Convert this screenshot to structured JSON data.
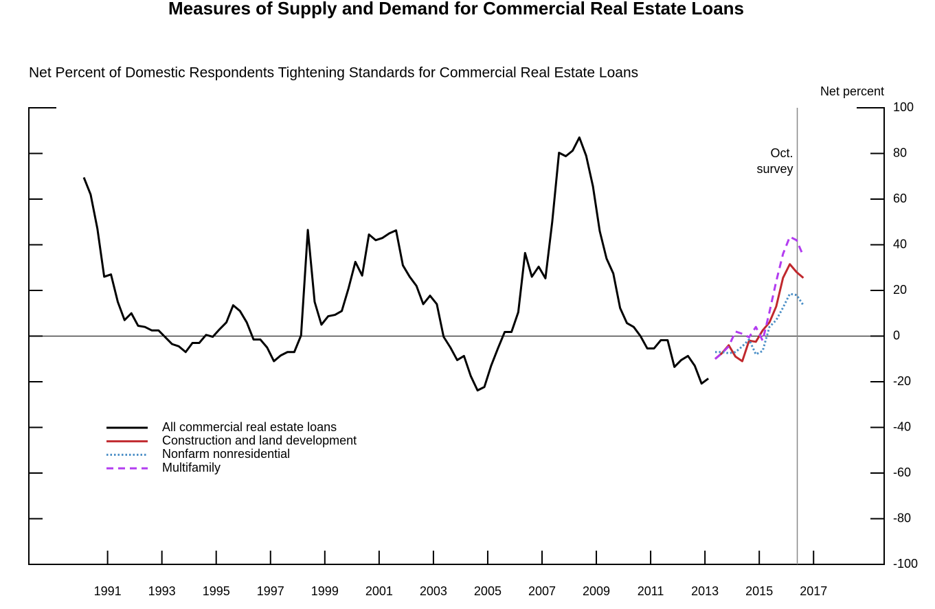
{
  "chart_data": {
    "type": "line",
    "title": "Measures of Supply and Demand for Commercial Real Estate Loans",
    "subtitle": "Net Percent of Domestic Respondents Tightening Standards for Commercial Real Estate Loans",
    "y_axis_label": "Net percent",
    "annotation": {
      "x": 2016.9,
      "lines": [
        "Oct.",
        "survey"
      ]
    },
    "xlim": [
      1988.6,
      2020.1
    ],
    "xticks": [
      {
        "value": 1991.5,
        "label": "1991"
      },
      {
        "value": 1993.5,
        "label": "1993"
      },
      {
        "value": 1995.5,
        "label": "1995"
      },
      {
        "value": 1997.5,
        "label": "1997"
      },
      {
        "value": 1999.5,
        "label": "1999"
      },
      {
        "value": 2001.5,
        "label": "2001"
      },
      {
        "value": 2003.5,
        "label": "2003"
      },
      {
        "value": 2005.5,
        "label": "2005"
      },
      {
        "value": 2007.5,
        "label": "2007"
      },
      {
        "value": 2009.5,
        "label": "2009"
      },
      {
        "value": 2011.5,
        "label": "2011"
      },
      {
        "value": 2013.5,
        "label": "2013"
      },
      {
        "value": 2015.5,
        "label": "2015"
      },
      {
        "value": 2017.5,
        "label": "2017"
      }
    ],
    "ylim": [
      -100,
      100
    ],
    "yticks": [
      100,
      80,
      60,
      40,
      20,
      0,
      -20,
      -40,
      -60,
      -80,
      -100
    ],
    "legend": "lower-left",
    "series": [
      {
        "name": "All commercial real estate loans",
        "color": "#000000",
        "style": "solid",
        "x": [
          1990.625,
          1990.875,
          1991.125,
          1991.375,
          1991.625,
          1991.875,
          1992.125,
          1992.375,
          1992.625,
          1992.875,
          1993.125,
          1993.375,
          1993.625,
          1993.875,
          1994.125,
          1994.375,
          1994.625,
          1994.875,
          1995.125,
          1995.375,
          1995.625,
          1995.875,
          1996.125,
          1996.375,
          1996.625,
          1996.875,
          1997.125,
          1997.375,
          1997.625,
          1997.875,
          1998.125,
          1998.375,
          1998.625,
          1998.875,
          1999.125,
          1999.375,
          1999.625,
          1999.875,
          2000.125,
          2000.375,
          2000.625,
          2000.875,
          2001.125,
          2001.375,
          2001.625,
          2001.875,
          2002.125,
          2002.375,
          2002.625,
          2002.875,
          2003.125,
          2003.375,
          2003.625,
          2003.875,
          2004.125,
          2004.375,
          2004.625,
          2004.875,
          2005.125,
          2005.375,
          2005.625,
          2005.875,
          2006.125,
          2006.375,
          2006.625,
          2006.875,
          2007.125,
          2007.375,
          2007.625,
          2007.875,
          2008.125,
          2008.375,
          2008.625,
          2008.875,
          2009.125,
          2009.375,
          2009.625,
          2009.875,
          2010.125,
          2010.375,
          2010.625,
          2010.875,
          2011.125,
          2011.375,
          2011.625,
          2011.875,
          2012.125,
          2012.375,
          2012.625,
          2012.875,
          2013.125,
          2013.375,
          2013.625
        ],
        "values": [
          69.5,
          62,
          47,
          26,
          27,
          15,
          7,
          10,
          4.5,
          4,
          2.5,
          2.5,
          -0.5,
          -3.5,
          -4.5,
          -7,
          -3,
          -3,
          0.5,
          -0.3,
          3,
          6,
          13.5,
          11,
          6,
          -1.5,
          -1.5,
          -5,
          -11,
          -8.5,
          -7,
          -7,
          0.3,
          46.5,
          15,
          5,
          8.7,
          9.3,
          11,
          21,
          32.5,
          26.5,
          44.5,
          42,
          43,
          45,
          46.3,
          31,
          26,
          22,
          14,
          17.7,
          14,
          -0.3,
          -5,
          -10.5,
          -8.7,
          -17.5,
          -23.8,
          -22.3,
          -13,
          -5.4,
          1.8,
          1.8,
          10.5,
          36.4,
          26,
          30.4,
          25.3,
          50,
          80.3,
          78.8,
          81.2,
          87,
          79,
          65.6,
          46,
          34,
          27.4,
          12.3,
          5.7,
          4,
          0,
          -5.4,
          -5.4,
          -1.8,
          -1.8,
          -13.5,
          -10.5,
          -8.7,
          -13,
          -20.8,
          -18.6
        ]
      },
      {
        "name": "Construction and land development",
        "color": "#c0282d",
        "style": "solid",
        "x": [
          2013.875,
          2014.125,
          2014.375,
          2014.625,
          2014.875,
          2015.125,
          2015.375,
          2015.625,
          2015.875,
          2016.125,
          2016.375,
          2016.625,
          2016.875,
          2017.125
        ],
        "values": [
          -10,
          -7.5,
          -4,
          -9,
          -11,
          -2,
          -2.5,
          2.5,
          6,
          13,
          25.5,
          31.5,
          28,
          25.5
        ]
      },
      {
        "name": "Nonfarm nonresidential",
        "color": "#4a8ec6",
        "style": "dotted",
        "x": [
          2013.875,
          2014.125,
          2014.375,
          2014.625,
          2014.875,
          2015.125,
          2015.375,
          2015.625,
          2015.875,
          2016.125,
          2016.375,
          2016.625,
          2016.875,
          2017.125
        ],
        "values": [
          -7,
          -7,
          -7.5,
          -7,
          -4.5,
          -1.5,
          -8,
          -6.5,
          4,
          7,
          12.5,
          18.5,
          18,
          13.5
        ]
      },
      {
        "name": "Multifamily",
        "color": "#b23cf0",
        "style": "dashed",
        "x": [
          2013.875,
          2014.125,
          2014.375,
          2014.625,
          2014.875,
          2015.125,
          2015.375,
          2015.625,
          2015.875,
          2016.125,
          2016.375,
          2016.625,
          2016.875,
          2017.125
        ],
        "values": [
          -10,
          -7.5,
          -4.5,
          2,
          1,
          -0.5,
          4,
          -2,
          10.5,
          24,
          36,
          43.5,
          42,
          35
        ]
      }
    ]
  }
}
